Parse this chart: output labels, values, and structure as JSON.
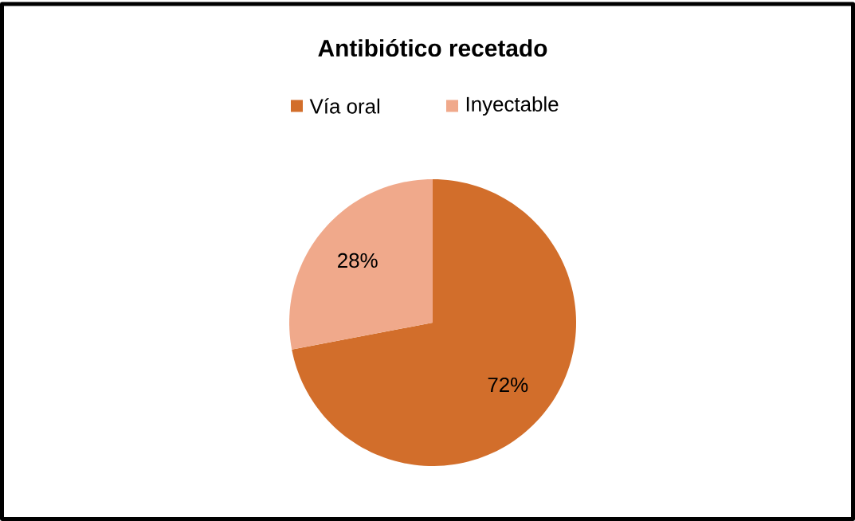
{
  "chart_data": {
    "type": "pie",
    "title": "Antibiótico recetado",
    "categories": [
      "Vía oral",
      "Inyectable"
    ],
    "values": [
      72,
      28
    ],
    "colors": [
      "#d26e2b",
      "#f0a98b"
    ],
    "value_labels": [
      "72%",
      "28%"
    ],
    "legend": "top"
  }
}
